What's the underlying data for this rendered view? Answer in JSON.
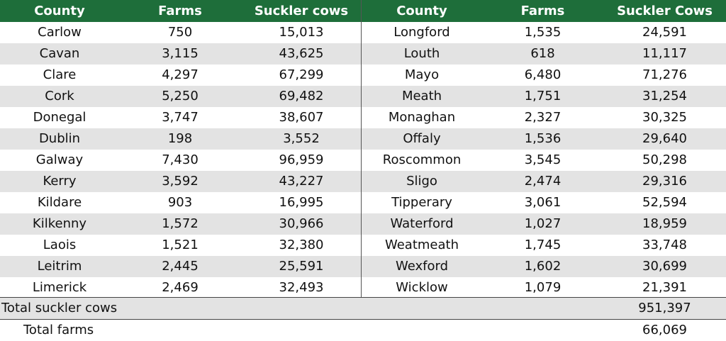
{
  "headers": [
    "County",
    "Farms",
    "Suckler cows",
    "County",
    "Farms",
    "Suckler Cows"
  ],
  "rows": [
    [
      "Carlow",
      "750",
      "15,013",
      "Longford",
      "1,535",
      "24,591"
    ],
    [
      "Cavan",
      "3,115",
      "43,625",
      "Louth",
      "618",
      "11,117"
    ],
    [
      "Clare",
      "4,297",
      "67,299",
      "Mayo",
      "6,480",
      "71,276"
    ],
    [
      "Cork",
      "5,250",
      "69,482",
      "Meath",
      "1,751",
      "31,254"
    ],
    [
      "Donegal",
      "3,747",
      "38,607",
      "Monaghan",
      "2,327",
      "30,325"
    ],
    [
      "Dublin",
      "198",
      "3,552",
      "Offaly",
      "1,536",
      "29,640"
    ],
    [
      "Galway",
      "7,430",
      "96,959",
      "Roscommon",
      "3,545",
      "50,298"
    ],
    [
      "Kerry",
      "3,592",
      "43,227",
      "Sligo",
      "2,474",
      "29,316"
    ],
    [
      "Kildare",
      "903",
      "16,995",
      "Tipperary",
      "3,061",
      "52,594"
    ],
    [
      "Kilkenny",
      "1,572",
      "30,966",
      "Waterford",
      "1,027",
      "18,959"
    ],
    [
      "Laois",
      "1,521",
      "32,380",
      "Weatmeath",
      "1,745",
      "33,748"
    ],
    [
      "Leitrim",
      "2,445",
      "25,591",
      "Wexford",
      "1,602",
      "30,699"
    ],
    [
      "Limerick",
      "2,469",
      "32,493",
      "Wicklow",
      "1,079",
      "21,391"
    ]
  ],
  "totals": {
    "cows_label": "Total suckler cows",
    "cows_value": "951,397",
    "farms_label": "Total farms",
    "farms_value": "66,069"
  },
  "colors": {
    "header": "#1e6e3a",
    "stripe": "#e3e3e3"
  }
}
